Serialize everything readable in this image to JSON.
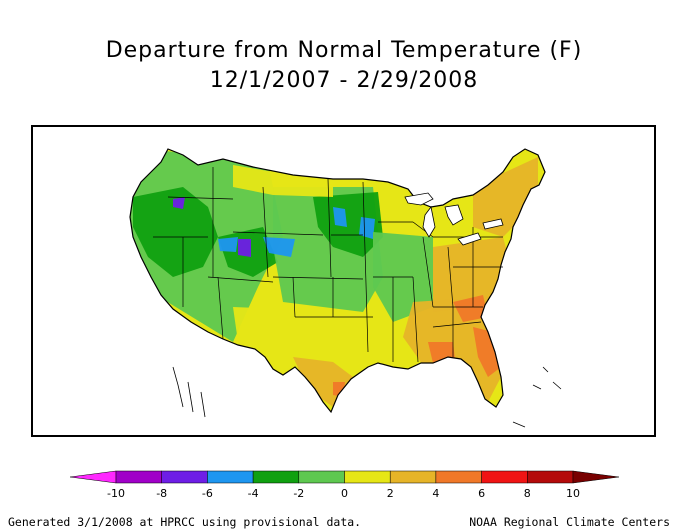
{
  "title": {
    "line1": "Departure from Normal Temperature (F)",
    "line2": "12/1/2007 - 2/29/2008"
  },
  "legend": {
    "ticks": [
      "-10",
      "-8",
      "-6",
      "-4",
      "-2",
      "0",
      "2",
      "4",
      "6",
      "8",
      "10"
    ],
    "bins": [
      {
        "from": -10,
        "to": -8,
        "color": "#a000c8"
      },
      {
        "from": -8,
        "to": -6,
        "color": "#6e1ee6"
      },
      {
        "from": -6,
        "to": -4,
        "color": "#1e96f0"
      },
      {
        "from": -4,
        "to": -2,
        "color": "#10a010"
      },
      {
        "from": -2,
        "to": 0,
        "color": "#5ec850"
      },
      {
        "from": 0,
        "to": 2,
        "color": "#e6e616"
      },
      {
        "from": 2,
        "to": 4,
        "color": "#e6b428"
      },
      {
        "from": 4,
        "to": 6,
        "color": "#f07828"
      },
      {
        "from": 6,
        "to": 8,
        "color": "#f01414"
      },
      {
        "from": 8,
        "to": 10,
        "color": "#b40a0a"
      }
    ],
    "under_color": "#ff28ff",
    "over_color": "#780000"
  },
  "footer": {
    "left": "Generated 3/1/2008 at HPRCC using provisional data.",
    "right": "NOAA Regional Climate Centers"
  }
}
